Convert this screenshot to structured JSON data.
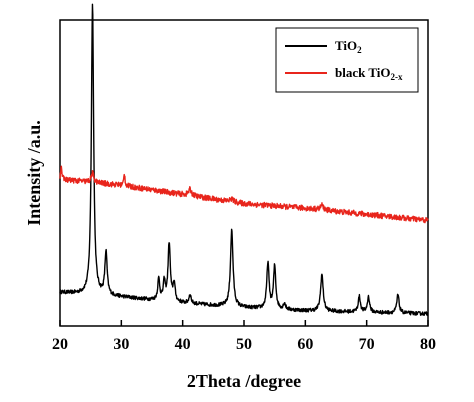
{
  "chart_data": {
    "type": "line",
    "xlabel": "2Theta /degree",
    "ylabel": "Intensity /a.u.",
    "xlim": [
      20,
      80
    ],
    "x_ticks": [
      "20",
      "30",
      "40",
      "50",
      "60",
      "70",
      "80"
    ],
    "ylim": [
      0,
      1
    ],
    "y_ticks_shown": false,
    "legend_position": "top-right",
    "legend": {
      "tio2_main": "TiO",
      "tio2_sub": "2",
      "black_main": "black TiO",
      "black_sub": "2-x"
    },
    "series": [
      {
        "name": "TiO2",
        "color": "#000000",
        "baseline": [
          [
            20,
            0.11
          ],
          [
            30,
            0.095
          ],
          [
            40,
            0.075
          ],
          [
            50,
            0.06
          ],
          [
            60,
            0.05
          ],
          [
            70,
            0.045
          ],
          [
            80,
            0.04
          ]
        ],
        "peaks": [
          {
            "x": 25.3,
            "height": 0.95,
            "width": 0.22
          },
          {
            "x": 27.5,
            "height": 0.14,
            "width": 0.22
          },
          {
            "x": 36.1,
            "height": 0.07,
            "width": 0.2
          },
          {
            "x": 37.0,
            "height": 0.06,
            "width": 0.2
          },
          {
            "x": 37.8,
            "height": 0.19,
            "width": 0.22
          },
          {
            "x": 38.6,
            "height": 0.06,
            "width": 0.2
          },
          {
            "x": 41.2,
            "height": 0.03,
            "width": 0.2
          },
          {
            "x": 48.0,
            "height": 0.25,
            "width": 0.25
          },
          {
            "x": 53.9,
            "height": 0.15,
            "width": 0.22
          },
          {
            "x": 55.0,
            "height": 0.14,
            "width": 0.22
          },
          {
            "x": 56.6,
            "height": 0.02,
            "width": 0.2
          },
          {
            "x": 62.7,
            "height": 0.12,
            "width": 0.25
          },
          {
            "x": 68.8,
            "height": 0.05,
            "width": 0.22
          },
          {
            "x": 70.3,
            "height": 0.05,
            "width": 0.22
          },
          {
            "x": 75.1,
            "height": 0.06,
            "width": 0.22
          }
        ]
      },
      {
        "name": "black TiO2-x",
        "color": "#e8251c",
        "baseline": [
          [
            20,
            0.48
          ],
          [
            25,
            0.47
          ],
          [
            30,
            0.46
          ],
          [
            40,
            0.43
          ],
          [
            50,
            0.4
          ],
          [
            60,
            0.385
          ],
          [
            70,
            0.365
          ],
          [
            80,
            0.345
          ]
        ],
        "peaks": [
          {
            "x": 20.2,
            "height": 0.05,
            "width": 0.1
          },
          {
            "x": 25.3,
            "height": 0.03,
            "width": 0.25
          },
          {
            "x": 30.5,
            "height": 0.04,
            "width": 0.12
          },
          {
            "x": 41.2,
            "height": 0.02,
            "width": 0.3
          },
          {
            "x": 48.0,
            "height": 0.01,
            "width": 0.3
          },
          {
            "x": 62.7,
            "height": 0.015,
            "width": 0.3
          }
        ]
      }
    ]
  }
}
